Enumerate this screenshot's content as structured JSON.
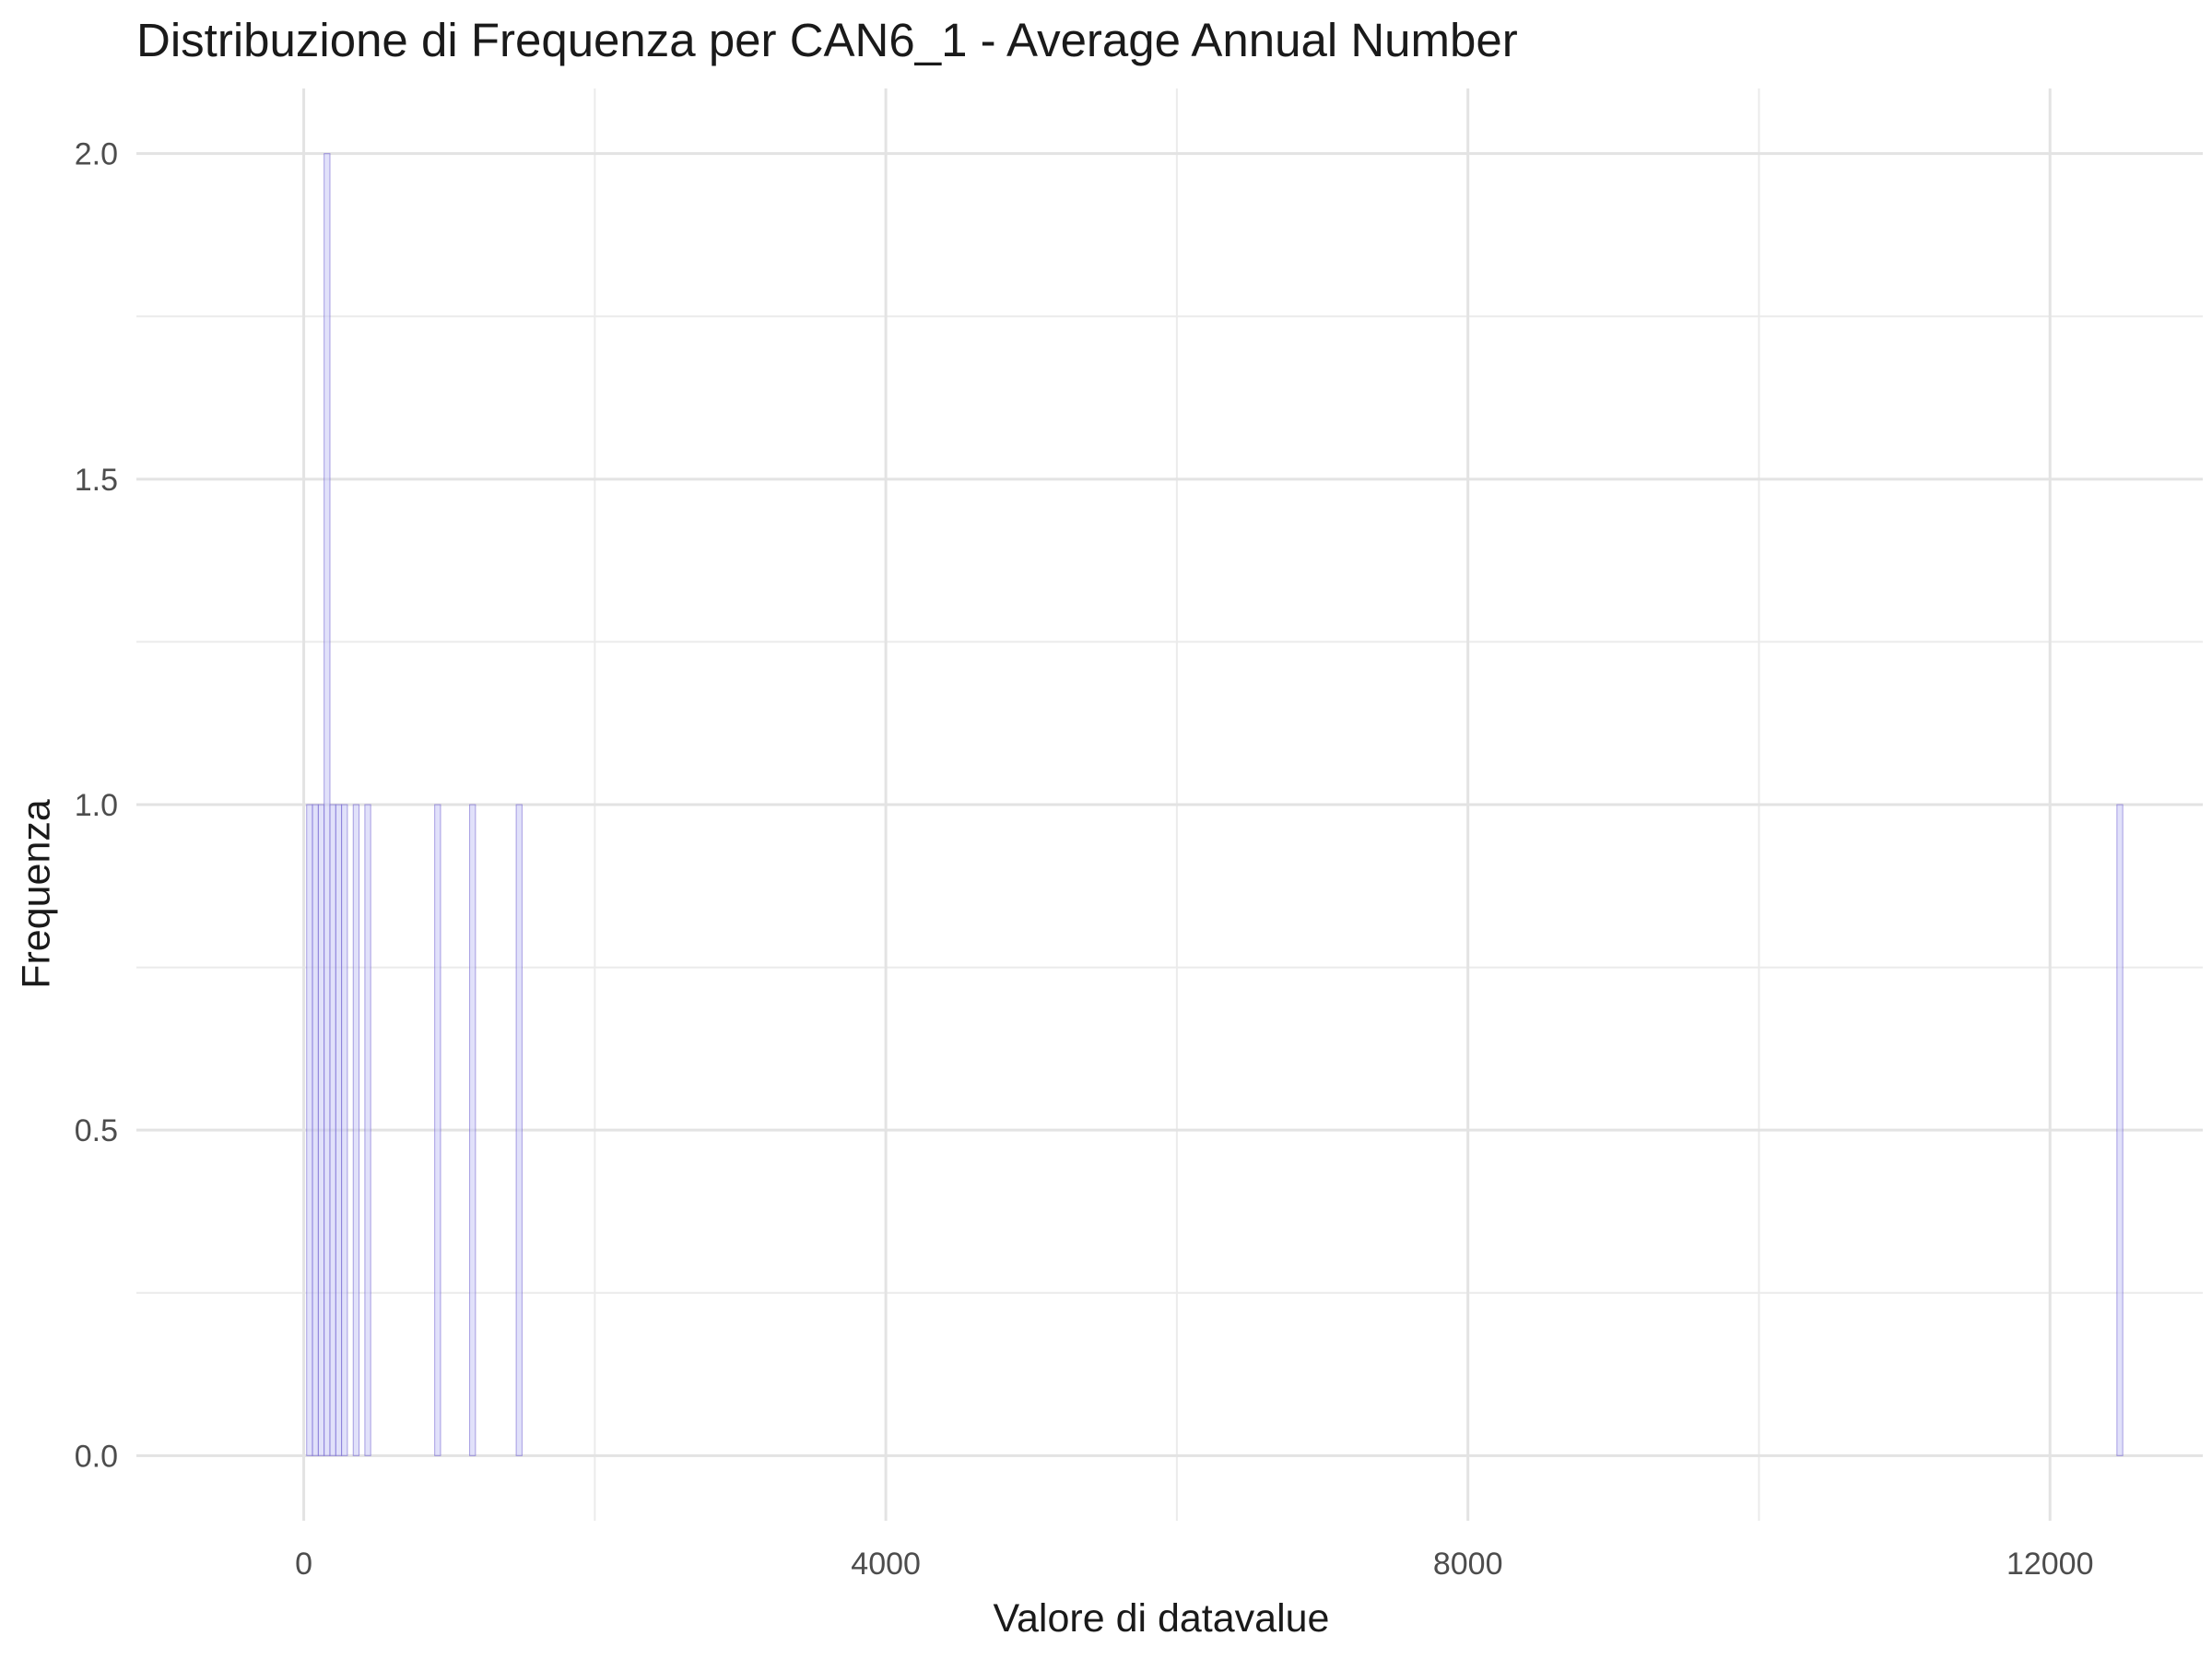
{
  "chart_data": {
    "type": "bar",
    "title": "Distribuzione di Frequenza per CAN6_1 - Average Annual Number",
    "xlabel": "Valore di datavalue",
    "ylabel": "Frequenza",
    "xlim": [
      -1150,
      13050
    ],
    "ylim": [
      -0.1,
      2.1
    ],
    "x_ticks": [
      0,
      4000,
      8000,
      12000
    ],
    "y_ticks": [
      0.0,
      0.5,
      1.0,
      1.5,
      2.0
    ],
    "y_tick_labels": [
      "0.0",
      "0.5",
      "1.0",
      "1.5",
      "2.0"
    ],
    "x_tick_labels": [
      "0",
      "4000",
      "8000",
      "12000"
    ],
    "grid": true,
    "bin_width": 40,
    "bar_color": "#6a5acd",
    "bar_fill": "#c8c8f5",
    "bins": [
      {
        "x": 40,
        "count": 1
      },
      {
        "x": 80,
        "count": 1
      },
      {
        "x": 120,
        "count": 1
      },
      {
        "x": 160,
        "count": 2
      },
      {
        "x": 200,
        "count": 1
      },
      {
        "x": 240,
        "count": 1
      },
      {
        "x": 280,
        "count": 1
      },
      {
        "x": 360,
        "count": 1
      },
      {
        "x": 440,
        "count": 1
      },
      {
        "x": 920,
        "count": 1
      },
      {
        "x": 1160,
        "count": 1
      },
      {
        "x": 1480,
        "count": 1
      },
      {
        "x": 12480,
        "count": 1
      }
    ]
  }
}
